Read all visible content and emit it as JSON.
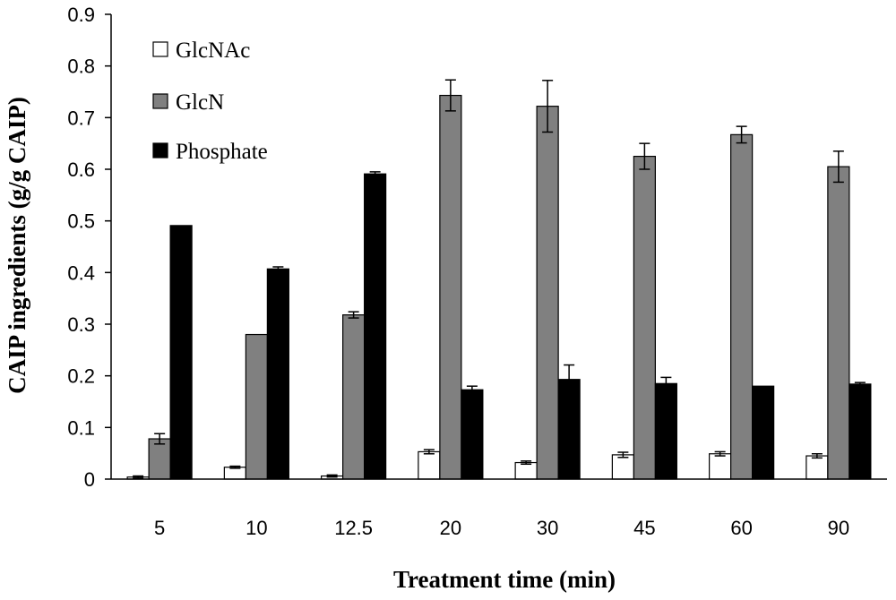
{
  "chart_data": {
    "type": "bar",
    "title": "",
    "xlabel": "Treatment time (min)",
    "ylabel": "CAIP ingredients (g/g CAIP)",
    "ylim": [
      0,
      0.9
    ],
    "yticks": [
      "0",
      "0.1",
      "0.2",
      "0.3",
      "0.4",
      "0.5",
      "0.6",
      "0.7",
      "0.8",
      "0.9"
    ],
    "grid": false,
    "legend_position": "top-left",
    "categories": [
      "5",
      "10",
      "12.5",
      "20",
      "30",
      "45",
      "60",
      "90"
    ],
    "series": [
      {
        "name": "GlcNAc",
        "fill": "#ffffff",
        "values": [
          0.004,
          0.023,
          0.006,
          0.053,
          0.032,
          0.047,
          0.049,
          0.045
        ],
        "errors": [
          0.002,
          0.002,
          0.002,
          0.004,
          0.003,
          0.005,
          0.004,
          0.004
        ]
      },
      {
        "name": "GlcN",
        "fill": "#808080",
        "values": [
          0.078,
          0.28,
          0.318,
          0.743,
          0.722,
          0.625,
          0.667,
          0.605
        ],
        "errors": [
          0.01,
          0.0,
          0.006,
          0.03,
          0.05,
          0.025,
          0.016,
          0.03
        ]
      },
      {
        "name": "Phosphate",
        "fill": "#000000",
        "values": [
          0.491,
          0.407,
          0.591,
          0.173,
          0.193,
          0.185,
          0.18,
          0.184
        ],
        "errors": [
          0.0,
          0.004,
          0.004,
          0.007,
          0.028,
          0.012,
          0.0,
          0.003
        ]
      }
    ]
  }
}
